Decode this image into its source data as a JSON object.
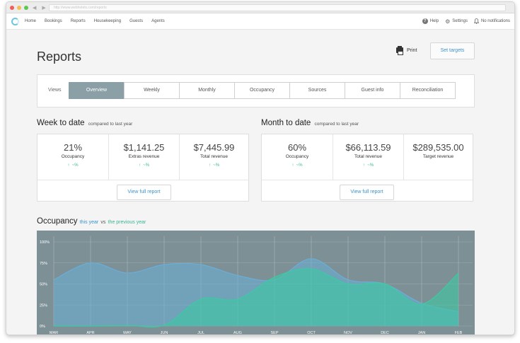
{
  "browser": {
    "url_text": "http://www.webhotels.com/reports"
  },
  "nav": {
    "items": [
      "Home",
      "Bookings",
      "Reports",
      "Housekeeping",
      "Guests",
      "Agents"
    ],
    "help": "Help",
    "settings": "Settings",
    "notifications": "No notifications"
  },
  "page": {
    "title": "Reports",
    "print": "Print",
    "set_targets": "Set targets"
  },
  "views": {
    "label": "Views",
    "tabs": [
      "Overview",
      "Weekly",
      "Monthly",
      "Occupancy",
      "Sources",
      "Guest info",
      "Reconciliation"
    ],
    "active": "Overview"
  },
  "week": {
    "title": "Week to date",
    "subtitle": "compared to last year",
    "stats": [
      {
        "value": "21%",
        "label": "Occupancy",
        "trend": "~%"
      },
      {
        "value": "$1,141.25",
        "label": "Extras revenue",
        "trend": "~%"
      },
      {
        "value": "$7,445.99",
        "label": "Total revenue",
        "trend": "~%"
      }
    ],
    "report_button": "View full report"
  },
  "month": {
    "title": "Month to date",
    "subtitle": "compared to last year",
    "stats": [
      {
        "value": "60%",
        "label": "Occupancy",
        "trend": "~%"
      },
      {
        "value": "$66,113.59",
        "label": "Total revenue",
        "trend": "~%"
      },
      {
        "value": "$289,535.00",
        "label": "Target revenue",
        "trend": ""
      }
    ],
    "report_button": "View full report"
  },
  "occupancy": {
    "title": "Occupancy",
    "this_year": "this year",
    "vs": "vs",
    "previous_year": "the previous year"
  },
  "colors": {
    "accent_blue": "#3d93c9",
    "accent_green": "#3ab594",
    "chart_bg": "#7d9095",
    "this_year_fill": "#6aaed8",
    "prev_year_fill": "#3ccaa2",
    "active_tab": "#8aa0a6"
  },
  "chart_data": {
    "type": "area",
    "x": [
      "MAR",
      "APR",
      "MAY",
      "JUN",
      "JUL",
      "AUG",
      "SEP",
      "OCT",
      "NOV",
      "DEC",
      "JAN",
      "FEB"
    ],
    "yticks": [
      "0%",
      "25%",
      "50%",
      "75%",
      "100%"
    ],
    "ylim": [
      0,
      100
    ],
    "series": [
      {
        "name": "this year",
        "values": [
          55,
          75,
          63,
          73,
          73,
          60,
          55,
          80,
          55,
          50,
          27,
          17
        ]
      },
      {
        "name": "the previous year",
        "values": [
          0,
          0,
          1,
          1,
          32,
          32,
          58,
          68,
          50,
          50,
          26,
          63
        ]
      }
    ]
  }
}
